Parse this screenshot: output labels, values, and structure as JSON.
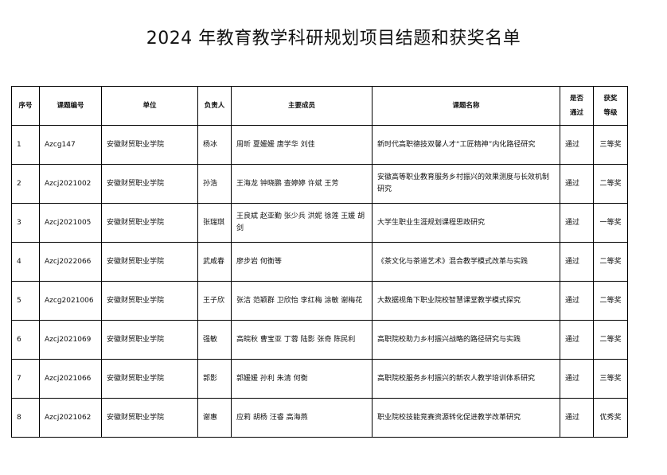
{
  "title": "2024 年教育教学科研规划项目结题和获奖名单",
  "table": {
    "headers": [
      "序号",
      "课题编号",
      "单位",
      "负责人",
      "主要成员",
      "课题名称",
      "是否通过",
      "获奖等级"
    ],
    "rows": [
      [
        "1",
        "Azcg147",
        "安徽财贸职业学院",
        "杨冰",
        "周昕 夏媛媛 唐学华 刘佳",
        "新时代高职德技双馨人才“工匠精神”内化路径研究",
        "通过",
        "三等奖"
      ],
      [
        "2",
        "Azcj2021002",
        "安徽财贸职业学院",
        "孙浩",
        "王海龙 钟晓鹏 查婷婷 许斌 王芳",
        "安徽高等职业教育服务乡村振兴的效果测度与长效机制研究",
        "通过",
        "二等奖"
      ],
      [
        "3",
        "Azcj2021005",
        "安徽财贸职业学院",
        "张瑞琪",
        "王良斌 赵亚勤 张少兵 洪妮 徐莲 王媛 胡剑",
        "大学生职业生涯规划课程思政研究",
        "通过",
        "一等奖"
      ],
      [
        "4",
        "Azcj2022066",
        "安徽财贸职业学院",
        "武咸春",
        "廖步岩 何衡等",
        "《茶文化与茶道艺术》混合教学模式改革与实践",
        "通过",
        "二等奖"
      ],
      [
        "5",
        "Azcg2021006",
        "安徽财贸职业学院",
        "王子欣",
        "张洁 范颖群 卫欣怡 李红梅 涂敏 谢梅花",
        "大数据视角下职业院校智慧课堂教学模式探究",
        "通过",
        "二等奖"
      ],
      [
        "6",
        "Azcj2021069",
        "安徽财贸职业学院",
        "强敏",
        "高皖秋 曹宝亚 丁蓉 陆影 张奇 陈民利",
        "高职院校助力乡村振兴战略的路径研究与实践",
        "通过",
        "二等奖"
      ],
      [
        "7",
        "Azcj2021066",
        "安徽财贸职业学院",
        "郭影",
        "郭媛媛 孙利 朱清 何衡",
        "高职院校服务乡村振兴的新农人教学培训体系研究",
        "通过",
        "三等奖"
      ],
      [
        "8",
        "Azcj2021062",
        "安徽财贸职业学院",
        "谢惠",
        "应莉 胡杨 汪睿 高海燕",
        "职业院校技能竞赛资源转化促进教学改革研究",
        "通过",
        "优秀奖"
      ]
    ]
  }
}
